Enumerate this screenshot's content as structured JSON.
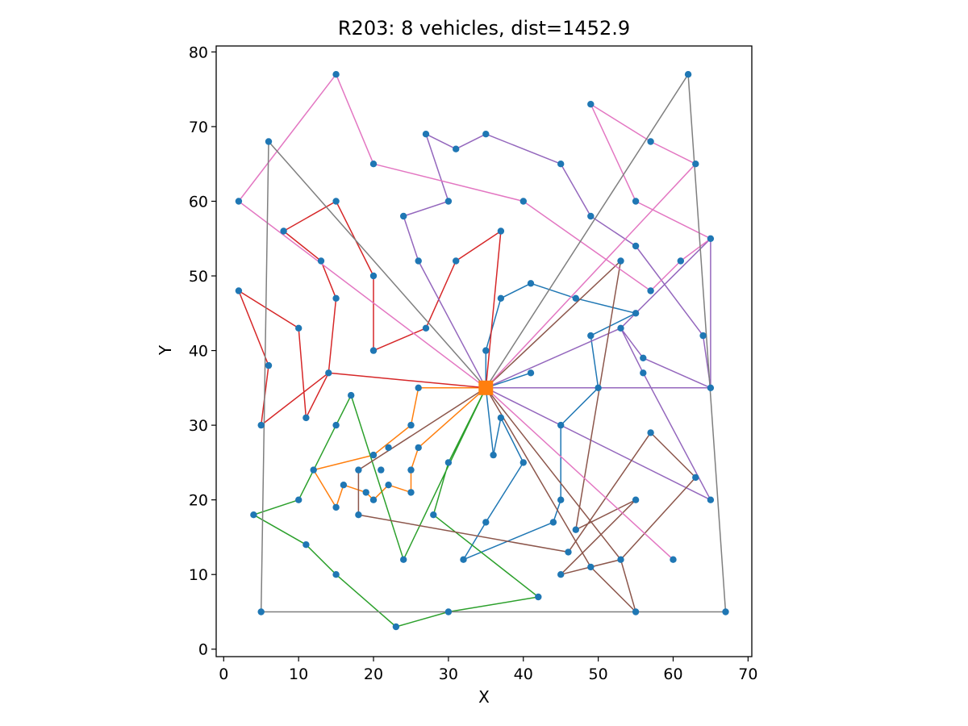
{
  "chart_data": {
    "type": "scatter",
    "title": "R203: 8 vehicles, dist=1452.9",
    "xlabel": "X",
    "ylabel": "Y",
    "xlim": [
      -1,
      70.5
    ],
    "ylim": [
      -1,
      80.8
    ],
    "xticks": [
      0,
      10,
      20,
      30,
      40,
      50,
      60,
      70
    ],
    "yticks": [
      0,
      10,
      20,
      30,
      40,
      50,
      60,
      70,
      80
    ],
    "grid": false,
    "legend": "none",
    "depot": {
      "x": 35,
      "y": 35,
      "color": "#ff7f0e"
    },
    "customer_color": "#1f77b4",
    "customers": [
      [
        35,
        35
      ],
      [
        41,
        49
      ],
      [
        35,
        17
      ],
      [
        55,
        45
      ],
      [
        55,
        20
      ],
      [
        15,
        30
      ],
      [
        25,
        30
      ],
      [
        20,
        50
      ],
      [
        10,
        43
      ],
      [
        55,
        60
      ],
      [
        30,
        60
      ],
      [
        20,
        65
      ],
      [
        50,
        35
      ],
      [
        30,
        25
      ],
      [
        15,
        10
      ],
      [
        30,
        5
      ],
      [
        10,
        20
      ],
      [
        5,
        30
      ],
      [
        20,
        40
      ],
      [
        15,
        60
      ],
      [
        45,
        65
      ],
      [
        45,
        20
      ],
      [
        45,
        10
      ],
      [
        55,
        5
      ],
      [
        65,
        35
      ],
      [
        65,
        20
      ],
      [
        45,
        30
      ],
      [
        35,
        40
      ],
      [
        41,
        37
      ],
      [
        64,
        42
      ],
      [
        40,
        60
      ],
      [
        31,
        52
      ],
      [
        35,
        69
      ],
      [
        53,
        52
      ],
      [
        65,
        55
      ],
      [
        63,
        65
      ],
      [
        2,
        60
      ],
      [
        20,
        20
      ],
      [
        5,
        5
      ],
      [
        60,
        12
      ],
      [
        40,
        25
      ],
      [
        42,
        7
      ],
      [
        24,
        12
      ],
      [
        23,
        3
      ],
      [
        11,
        14
      ],
      [
        6,
        38
      ],
      [
        2,
        48
      ],
      [
        8,
        56
      ],
      [
        13,
        52
      ],
      [
        6,
        68
      ],
      [
        47,
        47
      ],
      [
        49,
        58
      ],
      [
        27,
        43
      ],
      [
        37,
        31
      ],
      [
        57,
        29
      ],
      [
        63,
        23
      ],
      [
        53,
        12
      ],
      [
        32,
        12
      ],
      [
        36,
        26
      ],
      [
        21,
        24
      ],
      [
        17,
        34
      ],
      [
        12,
        24
      ],
      [
        24,
        58
      ],
      [
        27,
        69
      ],
      [
        15,
        77
      ],
      [
        62,
        77
      ],
      [
        49,
        73
      ],
      [
        67,
        5
      ],
      [
        56,
        39
      ],
      [
        37,
        47
      ],
      [
        37,
        56
      ],
      [
        57,
        68
      ],
      [
        47,
        16
      ],
      [
        44,
        17
      ],
      [
        46,
        13
      ],
      [
        49,
        11
      ],
      [
        49,
        42
      ],
      [
        53,
        43
      ],
      [
        61,
        52
      ],
      [
        57,
        48
      ],
      [
        56,
        37
      ],
      [
        55,
        54
      ],
      [
        15,
        47
      ],
      [
        14,
        37
      ],
      [
        11,
        31
      ],
      [
        16,
        22
      ],
      [
        4,
        18
      ],
      [
        28,
        18
      ],
      [
        26,
        52
      ],
      [
        26,
        35
      ],
      [
        31,
        67
      ],
      [
        15,
        19
      ],
      [
        22,
        22
      ],
      [
        18,
        24
      ],
      [
        26,
        27
      ],
      [
        25,
        24
      ],
      [
        22,
        27
      ],
      [
        25,
        21
      ],
      [
        19,
        21
      ],
      [
        20,
        26
      ],
      [
        18,
        18
      ]
    ],
    "series": [
      {
        "color": "#1f77b4",
        "route": [
          [
            35,
            35
          ],
          [
            35,
            40
          ],
          [
            37,
            47
          ],
          [
            41,
            49
          ],
          [
            47,
            47
          ],
          [
            55,
            45
          ],
          [
            49,
            42
          ],
          [
            50,
            35
          ],
          [
            45,
            30
          ],
          [
            45,
            20
          ],
          [
            44,
            17
          ],
          [
            32,
            12
          ],
          [
            35,
            17
          ],
          [
            40,
            25
          ],
          [
            37,
            31
          ],
          [
            36,
            26
          ],
          [
            35,
            35
          ],
          [
            41,
            37
          ],
          [
            35,
            35
          ]
        ]
      },
      {
        "color": "#ff7f0e",
        "route": [
          [
            35,
            35
          ],
          [
            26,
            35
          ],
          [
            25,
            30
          ],
          [
            20,
            26
          ],
          [
            12,
            24
          ],
          [
            15,
            19
          ],
          [
            16,
            22
          ],
          [
            19,
            21
          ],
          [
            20,
            20
          ],
          [
            22,
            22
          ],
          [
            25,
            21
          ],
          [
            25,
            24
          ],
          [
            26,
            27
          ],
          [
            35,
            35
          ]
        ]
      },
      {
        "color": "#2ca02c",
        "route": [
          [
            35,
            35
          ],
          [
            30,
            25
          ],
          [
            28,
            18
          ],
          [
            42,
            7
          ],
          [
            30,
            5
          ],
          [
            23,
            3
          ],
          [
            15,
            10
          ],
          [
            11,
            14
          ],
          [
            4,
            18
          ],
          [
            10,
            20
          ],
          [
            15,
            30
          ],
          [
            17,
            34
          ],
          [
            24,
            12
          ],
          [
            35,
            35
          ]
        ]
      },
      {
        "color": "#d62728",
        "route": [
          [
            35,
            35
          ],
          [
            14,
            37
          ],
          [
            11,
            31
          ],
          [
            10,
            43
          ],
          [
            2,
            48
          ],
          [
            6,
            38
          ],
          [
            5,
            30
          ],
          [
            14,
            37
          ],
          [
            35,
            35
          ],
          [
            37,
            56
          ],
          [
            31,
            52
          ],
          [
            27,
            43
          ],
          [
            20,
            40
          ],
          [
            20,
            50
          ],
          [
            15,
            60
          ],
          [
            8,
            56
          ],
          [
            13,
            52
          ],
          [
            15,
            47
          ],
          [
            14,
            37
          ],
          [
            35,
            35
          ]
        ]
      },
      {
        "color": "#9467bd",
        "route": [
          [
            35,
            35
          ],
          [
            26,
            52
          ],
          [
            24,
            58
          ],
          [
            30,
            60
          ],
          [
            27,
            69
          ],
          [
            31,
            67
          ],
          [
            35,
            69
          ],
          [
            45,
            65
          ],
          [
            49,
            58
          ],
          [
            55,
            54
          ],
          [
            64,
            42
          ],
          [
            65,
            35
          ],
          [
            65,
            55
          ],
          [
            53,
            43
          ],
          [
            56,
            39
          ],
          [
            65,
            35
          ],
          [
            35,
            35
          ],
          [
            53,
            43
          ],
          [
            56,
            37
          ],
          [
            65,
            20
          ],
          [
            35,
            35
          ]
        ]
      },
      {
        "color": "#8c564b",
        "route": [
          [
            35,
            35
          ],
          [
            18,
            24
          ],
          [
            18,
            18
          ],
          [
            46,
            13
          ],
          [
            57,
            29
          ],
          [
            63,
            23
          ],
          [
            53,
            12
          ],
          [
            49,
            11
          ],
          [
            45,
            10
          ],
          [
            55,
            20
          ],
          [
            47,
            16
          ],
          [
            53,
            52
          ],
          [
            35,
            35
          ],
          [
            49,
            11
          ],
          [
            55,
            5
          ],
          [
            53,
            12
          ],
          [
            35,
            35
          ]
        ]
      },
      {
        "color": "#e377c2",
        "route": [
          [
            35,
            35
          ],
          [
            63,
            65
          ],
          [
            57,
            68
          ],
          [
            49,
            73
          ],
          [
            55,
            60
          ],
          [
            65,
            55
          ],
          [
            61,
            52
          ],
          [
            57,
            48
          ],
          [
            40,
            60
          ],
          [
            20,
            65
          ],
          [
            15,
            77
          ],
          [
            2,
            60
          ],
          [
            35,
            35
          ],
          [
            60,
            12
          ],
          [
            35,
            35
          ]
        ]
      },
      {
        "color": "#7f7f7f",
        "route": [
          [
            35,
            35
          ],
          [
            6,
            68
          ],
          [
            5,
            5
          ],
          [
            67,
            5
          ],
          [
            62,
            77
          ],
          [
            35,
            35
          ]
        ]
      }
    ]
  }
}
